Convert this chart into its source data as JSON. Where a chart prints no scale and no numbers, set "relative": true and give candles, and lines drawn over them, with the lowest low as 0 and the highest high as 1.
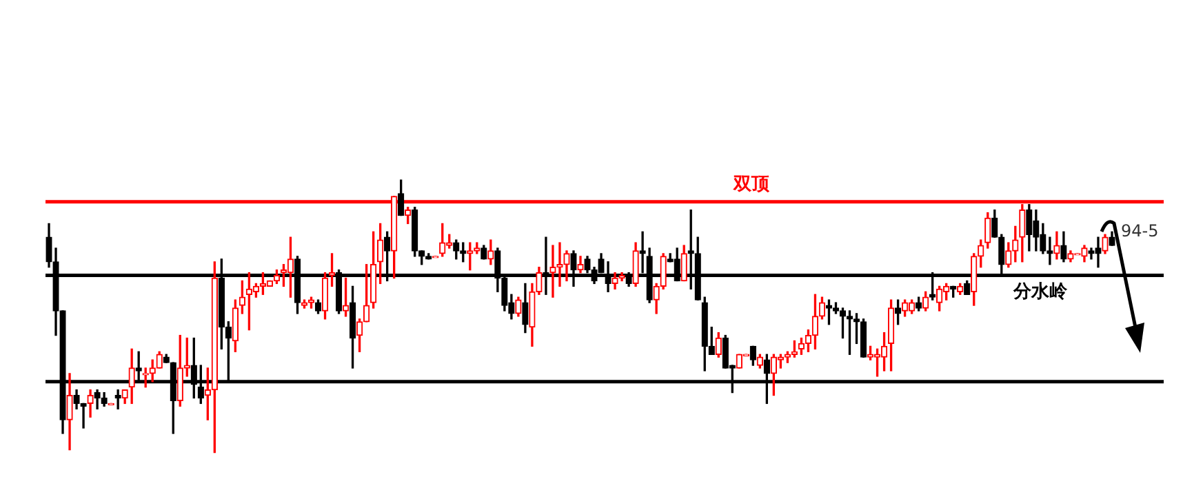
{
  "chart_data": {
    "type": "candlestick",
    "relative": true,
    "categories": [
      null,
      null,
      null,
      null,
      null,
      null,
      null,
      null,
      null,
      null,
      null,
      null,
      null,
      null,
      null,
      null,
      null,
      null,
      null,
      null,
      null,
      null,
      null,
      null,
      null,
      null,
      null,
      null,
      null,
      null,
      null,
      null,
      null,
      null,
      null,
      null,
      null,
      null,
      null,
      null,
      null,
      null,
      null,
      null,
      null,
      null,
      null,
      null,
      null,
      null,
      null,
      null,
      null,
      null,
      null,
      null,
      null,
      null,
      null,
      null,
      null,
      null,
      null,
      null,
      null,
      null,
      null,
      null,
      null,
      null,
      null,
      null,
      null,
      null,
      null,
      null,
      null,
      null,
      null,
      null,
      null,
      null,
      null,
      null,
      null,
      null,
      null,
      null,
      null,
      null,
      null,
      null,
      null,
      null,
      null,
      null,
      null,
      null,
      null,
      null,
      null,
      null,
      null,
      null,
      null,
      null,
      null,
      null,
      null,
      null,
      null,
      null,
      null,
      null,
      null,
      null,
      null,
      null,
      null,
      null,
      null,
      null,
      null,
      null,
      null,
      null,
      null,
      null,
      null,
      null,
      null,
      null,
      null,
      null,
      null,
      null,
      null,
      null,
      null,
      null,
      null,
      null,
      null,
      null,
      null,
      null,
      null,
      null,
      null,
      null,
      null,
      null,
      null,
      null,
      null
    ],
    "ohlc": [
      [
        0.79,
        0.84,
        0.68,
        0.7
      ],
      [
        0.7,
        0.75,
        0.43,
        0.52
      ],
      [
        0.52,
        0.52,
        0.07,
        0.12
      ],
      [
        0.12,
        0.29,
        0.01,
        0.21
      ],
      [
        0.21,
        0.23,
        0.16,
        0.18
      ],
      [
        0.18,
        0.18,
        0.09,
        0.17
      ],
      [
        0.18,
        0.23,
        0.13,
        0.21
      ],
      [
        0.22,
        0.23,
        0.16,
        0.2
      ],
      [
        0.2,
        0.22,
        0.17,
        0.18
      ],
      [
        0.18,
        0.18,
        0.18,
        0.18
      ],
      [
        0.21,
        0.23,
        0.16,
        0.2
      ],
      [
        0.2,
        0.23,
        0.18,
        0.23
      ],
      [
        0.24,
        0.38,
        0.18,
        0.31
      ],
      [
        0.31,
        0.37,
        0.26,
        0.3
      ],
      [
        0.29,
        0.31,
        0.24,
        0.29
      ],
      [
        0.29,
        0.34,
        0.26,
        0.31
      ],
      [
        0.31,
        0.37,
        0.31,
        0.36
      ],
      [
        0.35,
        0.36,
        0.33,
        0.33
      ],
      [
        0.33,
        0.33,
        0.07,
        0.19
      ],
      [
        0.19,
        0.43,
        0.17,
        0.31
      ],
      [
        0.31,
        0.42,
        0.28,
        0.32
      ],
      [
        0.32,
        0.42,
        0.2,
        0.25
      ],
      [
        0.24,
        0.32,
        0.18,
        0.2
      ],
      [
        0.21,
        0.31,
        0.12,
        0.23
      ],
      [
        0.23,
        0.7,
        0,
        0.64
      ],
      [
        0.64,
        0.71,
        0.38,
        0.46
      ],
      [
        0.46,
        0.48,
        0.26,
        0.42
      ],
      [
        0.41,
        0.56,
        0.37,
        0.53
      ],
      [
        0.54,
        0.63,
        0.51,
        0.57
      ],
      [
        0.58,
        0.66,
        0.45,
        0.6
      ],
      [
        0.59,
        0.62,
        0.57,
        0.61
      ],
      [
        0.61,
        0.66,
        0.58,
        0.62
      ],
      [
        0.61,
        0.63,
        0.61,
        0.63
      ],
      [
        0.63,
        0.67,
        0.62,
        0.65
      ],
      [
        0.66,
        0.69,
        0.61,
        0.67
      ],
      [
        0.66,
        0.79,
        0.57,
        0.71
      ],
      [
        0.71,
        0.72,
        0.51,
        0.55
      ],
      [
        0.54,
        0.56,
        0.53,
        0.55
      ],
      [
        0.55,
        0.57,
        0.53,
        0.56
      ],
      [
        0.55,
        0.56,
        0.51,
        0.52
      ],
      [
        0.52,
        0.66,
        0.49,
        0.64
      ],
      [
        0.65,
        0.73,
        0.61,
        0.66
      ],
      [
        0.66,
        0.67,
        0.51,
        0.52
      ],
      [
        0.52,
        0.64,
        0.5,
        0.54
      ],
      [
        0.55,
        0.61,
        0.31,
        0.42
      ],
      [
        0.43,
        0.49,
        0.37,
        0.48
      ],
      [
        0.48,
        0.69,
        0.48,
        0.54
      ],
      [
        0.55,
        0.81,
        0.53,
        0.69
      ],
      [
        0.7,
        0.84,
        0.62,
        0.78
      ],
      [
        0.79,
        0.81,
        0.63,
        0.74
      ],
      [
        0.74,
        0.94,
        0.64,
        0.94
      ],
      [
        0.95,
        1,
        0.87,
        0.87
      ],
      [
        0.87,
        0.9,
        0.84,
        0.89
      ],
      [
        0.89,
        0.9,
        0.72,
        0.74
      ],
      [
        0.74,
        0.74,
        0.69,
        0.72
      ],
      [
        0.72,
        0.73,
        0.71,
        0.71
      ],
      [
        0.72,
        0.72,
        0.72,
        0.72
      ],
      [
        0.73,
        0.84,
        0.72,
        0.77
      ],
      [
        0.76,
        0.8,
        0.75,
        0.77
      ],
      [
        0.77,
        0.78,
        0.71,
        0.74
      ],
      [
        0.74,
        0.77,
        0.7,
        0.73
      ],
      [
        0.73,
        0.77,
        0.67,
        0.74
      ],
      [
        0.74,
        0.77,
        0.73,
        0.75
      ],
      [
        0.75,
        0.76,
        0.71,
        0.71
      ],
      [
        0.71,
        0.78,
        0.69,
        0.74
      ],
      [
        0.74,
        0.75,
        0.59,
        0.64
      ],
      [
        0.64,
        0.65,
        0.52,
        0.54
      ],
      [
        0.55,
        0.58,
        0.49,
        0.51
      ],
      [
        0.51,
        0.57,
        0.5,
        0.56
      ],
      [
        0.55,
        0.62,
        0.44,
        0.47
      ],
      [
        0.46,
        0.62,
        0.39,
        0.59
      ],
      [
        0.59,
        0.68,
        0.58,
        0.66
      ],
      [
        0.66,
        0.79,
        0.58,
        0.65
      ],
      [
        0.66,
        0.76,
        0.57,
        0.68
      ],
      [
        0.68,
        0.77,
        0.61,
        0.69
      ],
      [
        0.69,
        0.74,
        0.63,
        0.73
      ],
      [
        0.73,
        0.74,
        0.61,
        0.67
      ],
      [
        0.67,
        0.72,
        0.66,
        0.69
      ],
      [
        0.71,
        0.72,
        0.66,
        0.67
      ],
      [
        0.67,
        0.68,
        0.62,
        0.63
      ],
      [
        0.71,
        0.73,
        0.66,
        0.66
      ],
      [
        0.65,
        0.7,
        0.59,
        0.62
      ],
      [
        0.62,
        0.66,
        0.6,
        0.64
      ],
      [
        0.64,
        0.66,
        0.63,
        0.65
      ],
      [
        0.65,
        0.66,
        0.61,
        0.62
      ],
      [
        0.62,
        0.77,
        0.61,
        0.74
      ],
      [
        0.74,
        0.81,
        0.66,
        0.73
      ],
      [
        0.72,
        0.75,
        0.55,
        0.56
      ],
      [
        0.56,
        0.62,
        0.51,
        0.61
      ],
      [
        0.61,
        0.73,
        0.6,
        0.72
      ],
      [
        0.71,
        0.73,
        0.7,
        0.7
      ],
      [
        0.71,
        0.75,
        0.63,
        0.63
      ],
      [
        0.63,
        0.76,
        0.63,
        0.73
      ],
      [
        0.74,
        0.89,
        0.6,
        0.73
      ],
      [
        0.73,
        0.79,
        0.56,
        0.56
      ],
      [
        0.55,
        0.57,
        0.3,
        0.39
      ],
      [
        0.39,
        0.46,
        0.36,
        0.36
      ],
      [
        0.36,
        0.44,
        0.35,
        0.42
      ],
      [
        0.42,
        0.43,
        0.31,
        0.31
      ],
      [
        0.32,
        0.32,
        0.22,
        0.31
      ],
      [
        0.31,
        0.36,
        0.31,
        0.36
      ],
      [
        0.36,
        0.36,
        0.36,
        0.36
      ],
      [
        0.39,
        0.39,
        0.32,
        0.34
      ],
      [
        0.32,
        0.36,
        0.31,
        0.35
      ],
      [
        0.34,
        0.36,
        0.18,
        0.29
      ],
      [
        0.29,
        0.36,
        0.21,
        0.35
      ],
      [
        0.34,
        0.36,
        0.31,
        0.35
      ],
      [
        0.35,
        0.37,
        0.33,
        0.36
      ],
      [
        0.36,
        0.41,
        0.35,
        0.37
      ],
      [
        0.38,
        0.42,
        0.36,
        0.4
      ],
      [
        0.4,
        0.45,
        0.37,
        0.43
      ],
      [
        0.43,
        0.58,
        0.38,
        0.5
      ],
      [
        0.5,
        0.57,
        0.49,
        0.55
      ],
      [
        0.54,
        0.56,
        0.47,
        0.53
      ],
      [
        0.53,
        0.55,
        0.51,
        0.52
      ],
      [
        0.52,
        0.53,
        0.42,
        0.5
      ],
      [
        0.5,
        0.52,
        0.36,
        0.49
      ],
      [
        0.49,
        0.51,
        0.4,
        0.48
      ],
      [
        0.48,
        0.49,
        0.35,
        0.35
      ],
      [
        0.35,
        0.39,
        0.34,
        0.36
      ],
      [
        0.35,
        0.38,
        0.28,
        0.36
      ],
      [
        0.35,
        0.44,
        0.3,
        0.39
      ],
      [
        0.4,
        0.56,
        0.3,
        0.53
      ],
      [
        0.53,
        0.56,
        0.47,
        0.51
      ],
      [
        0.52,
        0.56,
        0.5,
        0.55
      ],
      [
        0.52,
        0.56,
        0.51,
        0.55
      ],
      [
        0.55,
        0.57,
        0.52,
        0.53
      ],
      [
        0.53,
        0.59,
        0.52,
        0.57
      ],
      [
        0.58,
        0.66,
        0.56,
        0.57
      ],
      [
        0.55,
        0.61,
        0.52,
        0.6
      ],
      [
        0.59,
        0.62,
        0.56,
        0.61
      ],
      [
        0.61,
        0.61,
        0.57,
        0.6
      ],
      [
        0.59,
        0.62,
        0.58,
        0.61
      ],
      [
        0.62,
        0.63,
        0.58,
        0.58
      ],
      [
        0.59,
        0.73,
        0.54,
        0.72
      ],
      [
        0.72,
        0.78,
        0.68,
        0.76
      ],
      [
        0.77,
        0.88,
        0.75,
        0.86
      ],
      [
        0.86,
        0.89,
        0.79,
        0.79
      ],
      [
        0.79,
        0.8,
        0.65,
        0.69
      ],
      [
        0.69,
        0.77,
        0.68,
        0.74
      ],
      [
        0.74,
        0.83,
        0.7,
        0.78
      ],
      [
        0.79,
        0.91,
        0.7,
        0.89
      ],
      [
        0.89,
        0.91,
        0.74,
        0.8
      ],
      [
        0.85,
        0.89,
        0.74,
        0.79
      ],
      [
        0.8,
        0.84,
        0.73,
        0.74
      ],
      [
        0.74,
        0.79,
        0.69,
        0.73
      ],
      [
        0.73,
        0.81,
        0.71,
        0.76
      ],
      [
        0.76,
        0.81,
        0.7,
        0.71
      ],
      [
        0.71,
        0.74,
        0.7,
        0.73
      ],
      [
        0.73,
        0.73,
        0.73,
        0.73
      ],
      [
        0.72,
        0.76,
        0.7,
        0.75
      ],
      [
        0.74,
        0.75,
        0.71,
        0.73
      ],
      [
        0.75,
        0.79,
        0.68,
        0.73
      ],
      [
        0.74,
        0.8,
        0.73,
        0.79
      ],
      [
        0.79,
        0.81,
        0.76,
        0.76
      ]
    ],
    "ref_lines": [
      {
        "axis": "y",
        "value": 0.92,
        "label": "双顶",
        "color": "#ff0000"
      },
      {
        "axis": "y",
        "value": 0.26,
        "color": "#000000"
      },
      {
        "axis": "y",
        "value": 0.65,
        "label": "分水岭",
        "color": "#000000"
      }
    ],
    "annotations": [
      "94-5"
    ]
  }
}
